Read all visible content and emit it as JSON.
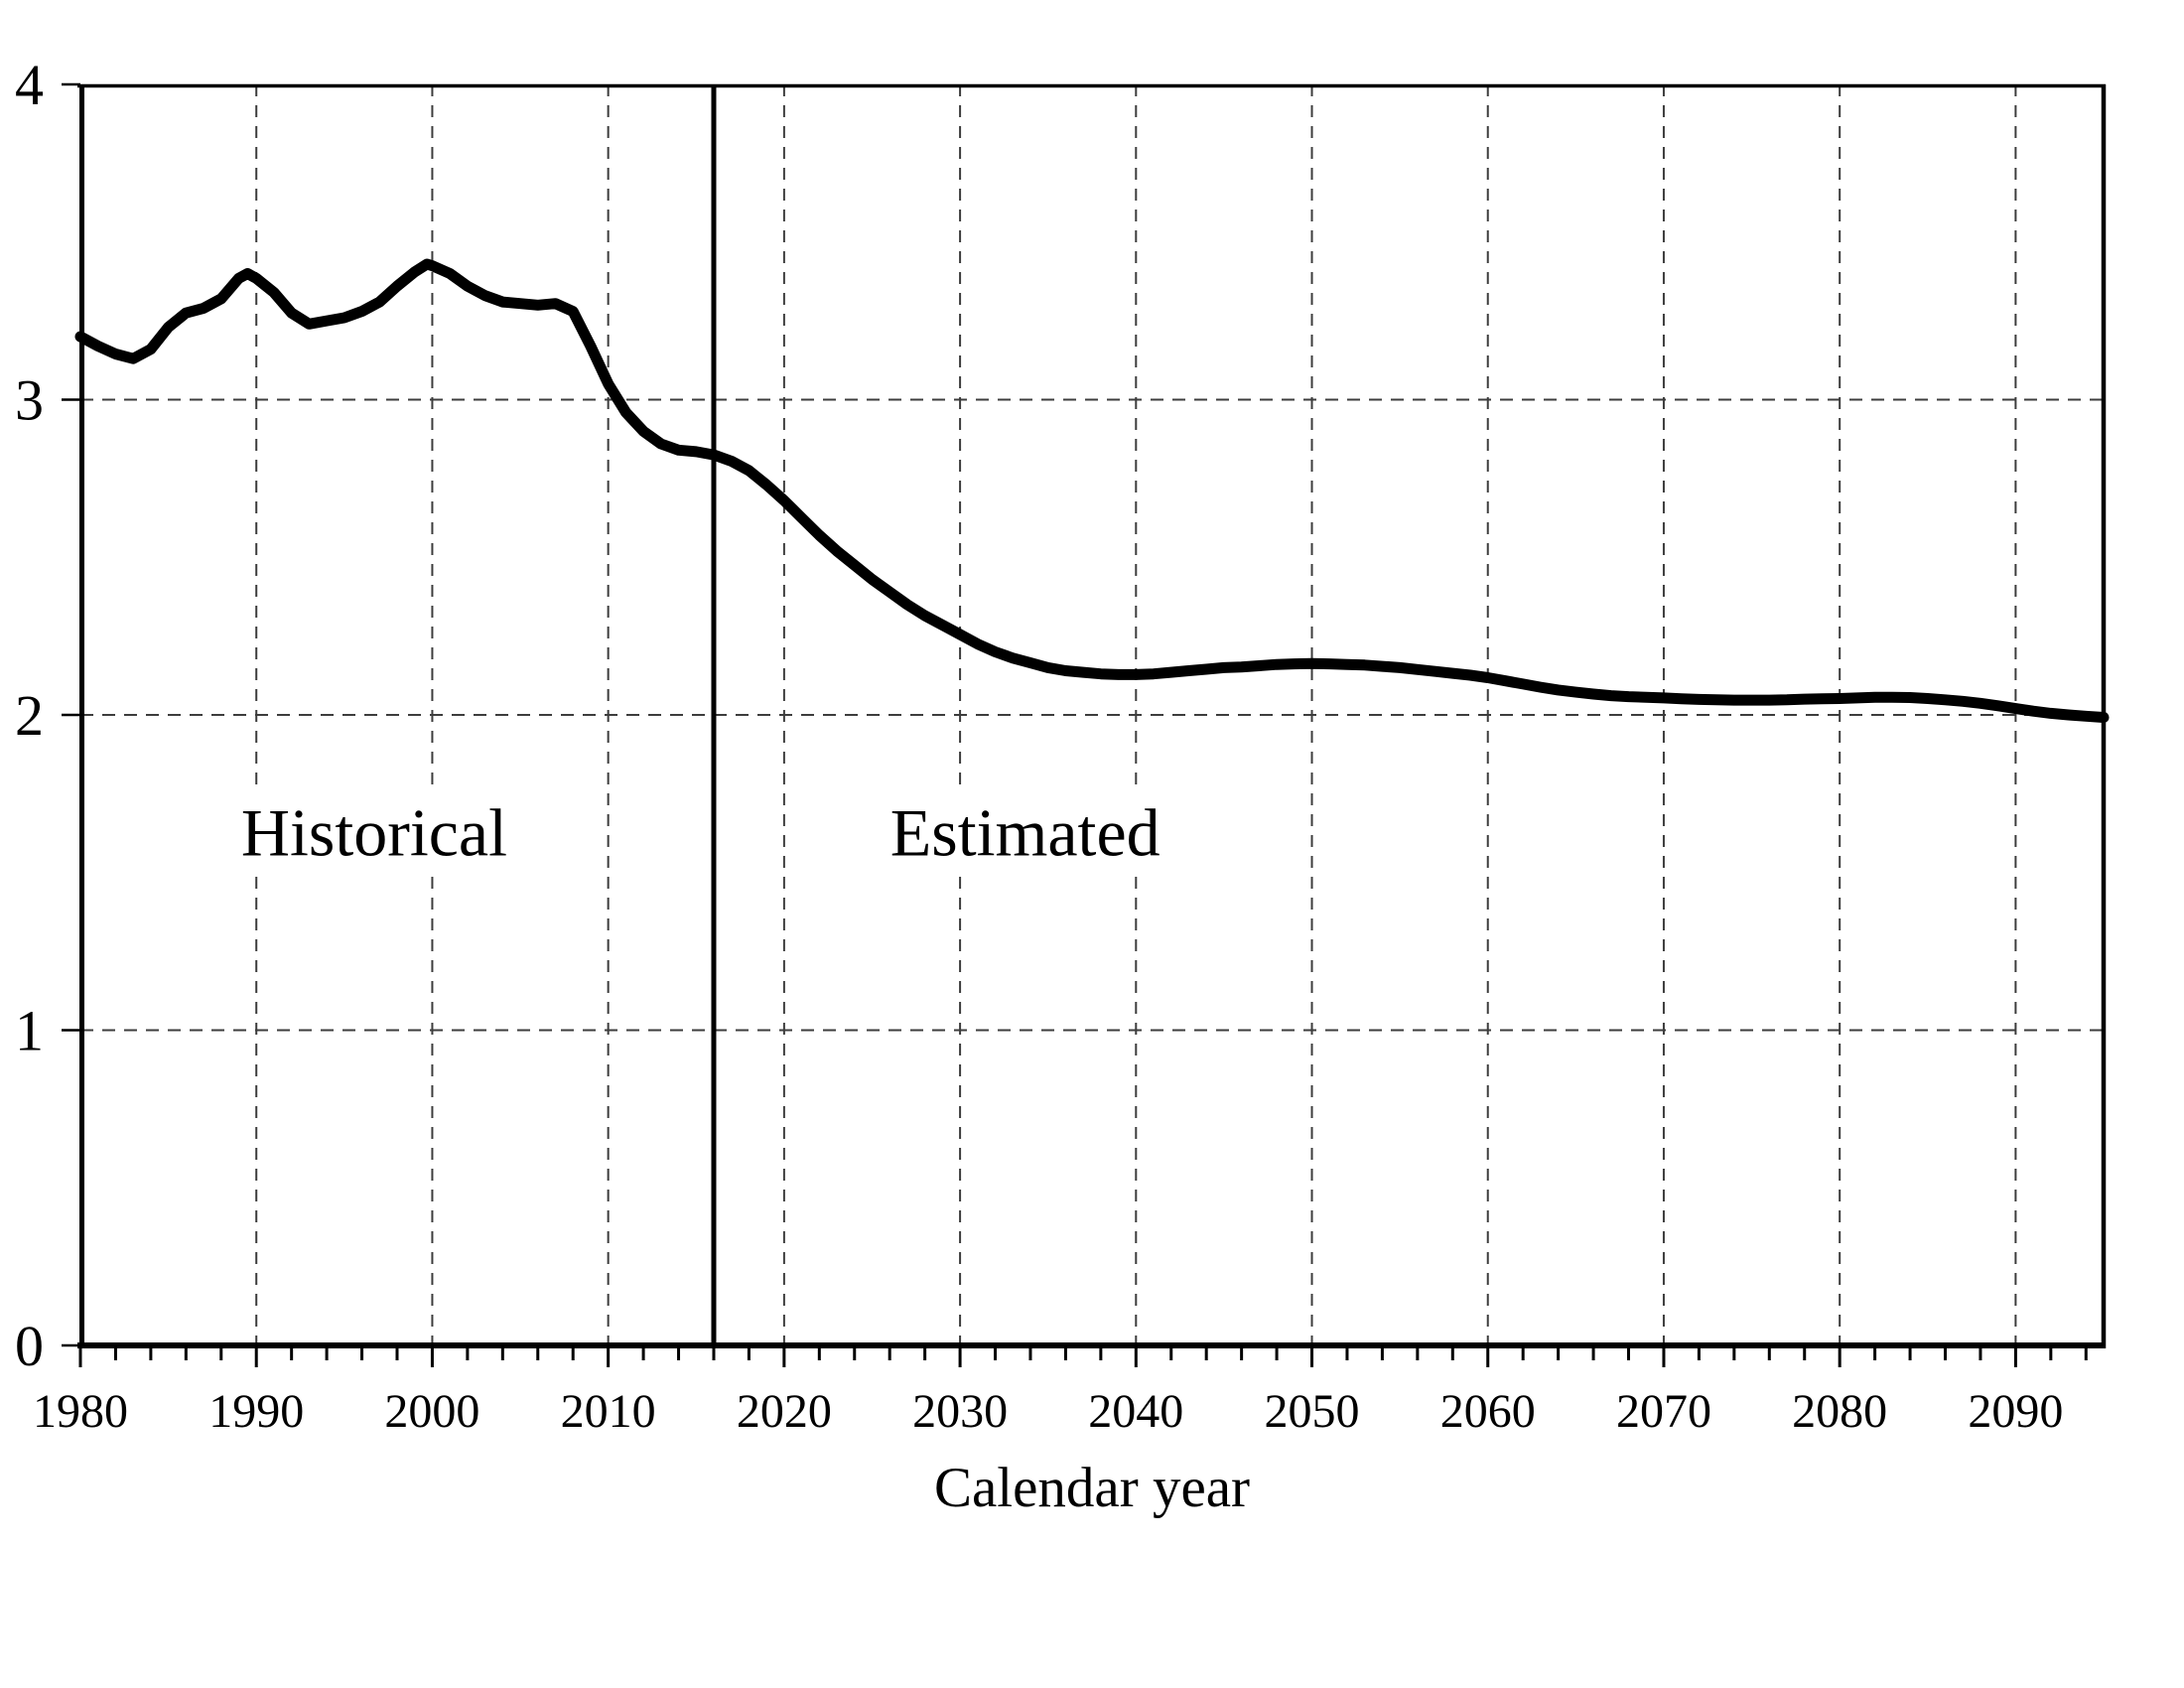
{
  "chart_data": {
    "type": "line",
    "title": "",
    "xlabel": "Calendar year",
    "ylabel": "",
    "x_range": [
      1980,
      2095
    ],
    "y_range": [
      0,
      4
    ],
    "x_tick_labels": [
      1980,
      1990,
      2000,
      2010,
      2020,
      2030,
      2040,
      2050,
      2060,
      2070,
      2080,
      2090
    ],
    "x_minor_tick_step": 2,
    "y_tick_labels": [
      0,
      1,
      2,
      3,
      4
    ],
    "grid": {
      "vertical_lines_at_years": [
        1990,
        2000,
        2010,
        2020,
        2030,
        2040,
        2050,
        2060,
        2070,
        2080,
        2090
      ],
      "horizontal_lines_at_values": [
        1,
        2,
        3
      ],
      "style": "dashed"
    },
    "boundary_line": {
      "year": 2016,
      "style": "solid-vertical"
    },
    "annotations": [
      {
        "text": "Historical",
        "x_year": 1996.7,
        "y_value": 1.63
      },
      {
        "text": "Estimated",
        "x_year": 2033.7,
        "y_value": 1.63
      }
    ],
    "legend": "none",
    "series": [
      {
        "name": "ratio-line",
        "color": "#000000",
        "points": [
          [
            1980,
            3.2
          ],
          [
            1981,
            3.17
          ],
          [
            1982,
            3.145
          ],
          [
            1983,
            3.13
          ],
          [
            1984,
            3.16
          ],
          [
            1985,
            3.23
          ],
          [
            1986,
            3.275
          ],
          [
            1987,
            3.29
          ],
          [
            1988,
            3.32
          ],
          [
            1989,
            3.385
          ],
          [
            1989.5,
            3.4
          ],
          [
            1990,
            3.385
          ],
          [
            1991,
            3.34
          ],
          [
            1992,
            3.275
          ],
          [
            1993,
            3.24
          ],
          [
            1994,
            3.25
          ],
          [
            1995,
            3.26
          ],
          [
            1996,
            3.28
          ],
          [
            1997,
            3.31
          ],
          [
            1998,
            3.36
          ],
          [
            1999,
            3.405
          ],
          [
            1999.7,
            3.43
          ],
          [
            2000,
            3.425
          ],
          [
            2001,
            3.4
          ],
          [
            2002,
            3.36
          ],
          [
            2003,
            3.33
          ],
          [
            2004,
            3.31
          ],
          [
            2005,
            3.305
          ],
          [
            2006,
            3.3
          ],
          [
            2007,
            3.305
          ],
          [
            2008,
            3.28
          ],
          [
            2009,
            3.17
          ],
          [
            2010,
            3.05
          ],
          [
            2011,
            2.96
          ],
          [
            2012,
            2.9
          ],
          [
            2013,
            2.86
          ],
          [
            2014,
            2.84
          ],
          [
            2015,
            2.835
          ],
          [
            2016,
            2.825
          ],
          [
            2017,
            2.805
          ],
          [
            2018,
            2.775
          ],
          [
            2019,
            2.73
          ],
          [
            2020,
            2.68
          ],
          [
            2021,
            2.625
          ],
          [
            2022,
            2.57
          ],
          [
            2023,
            2.52
          ],
          [
            2024,
            2.475
          ],
          [
            2025,
            2.43
          ],
          [
            2026,
            2.39
          ],
          [
            2027,
            2.35
          ],
          [
            2028,
            2.315
          ],
          [
            2029,
            2.285
          ],
          [
            2030,
            2.255
          ],
          [
            2031,
            2.225
          ],
          [
            2032,
            2.2
          ],
          [
            2033,
            2.18
          ],
          [
            2034,
            2.165
          ],
          [
            2035,
            2.15
          ],
          [
            2036,
            2.14
          ],
          [
            2037,
            2.135
          ],
          [
            2038,
            2.13
          ],
          [
            2039,
            2.128
          ],
          [
            2040,
            2.128
          ],
          [
            2041,
            2.13
          ],
          [
            2042,
            2.135
          ],
          [
            2043,
            2.14
          ],
          [
            2044,
            2.145
          ],
          [
            2045,
            2.15
          ],
          [
            2046,
            2.152
          ],
          [
            2047,
            2.156
          ],
          [
            2048,
            2.16
          ],
          [
            2049,
            2.162
          ],
          [
            2050,
            2.163
          ],
          [
            2051,
            2.162
          ],
          [
            2052,
            2.16
          ],
          [
            2053,
            2.158
          ],
          [
            2054,
            2.154
          ],
          [
            2055,
            2.15
          ],
          [
            2056,
            2.144
          ],
          [
            2057,
            2.138
          ],
          [
            2058,
            2.132
          ],
          [
            2059,
            2.126
          ],
          [
            2060,
            2.118
          ],
          [
            2061,
            2.108
          ],
          [
            2062,
            2.098
          ],
          [
            2063,
            2.088
          ],
          [
            2064,
            2.079
          ],
          [
            2065,
            2.072
          ],
          [
            2066,
            2.066
          ],
          [
            2067,
            2.061
          ],
          [
            2068,
            2.058
          ],
          [
            2069,
            2.056
          ],
          [
            2070,
            2.054
          ],
          [
            2071,
            2.051
          ],
          [
            2072,
            2.049
          ],
          [
            2073,
            2.048
          ],
          [
            2074,
            2.047
          ],
          [
            2075,
            2.047
          ],
          [
            2076,
            2.047
          ],
          [
            2077,
            2.048
          ],
          [
            2078,
            2.05
          ],
          [
            2079,
            2.051
          ],
          [
            2080,
            2.052
          ],
          [
            2081,
            2.054
          ],
          [
            2082,
            2.056
          ],
          [
            2083,
            2.056
          ],
          [
            2084,
            2.055
          ],
          [
            2085,
            2.052
          ],
          [
            2086,
            2.048
          ],
          [
            2087,
            2.043
          ],
          [
            2088,
            2.037
          ],
          [
            2089,
            2.029
          ],
          [
            2090,
            2.02
          ],
          [
            2091,
            2.012
          ],
          [
            2092,
            2.005
          ],
          [
            2093,
            2.0
          ],
          [
            2094,
            1.996
          ],
          [
            2095,
            1.992
          ]
        ]
      }
    ]
  },
  "colors": {
    "line": "#000000",
    "grid": "#3d3d3d",
    "background": "#ffffff",
    "text": "#000000"
  }
}
